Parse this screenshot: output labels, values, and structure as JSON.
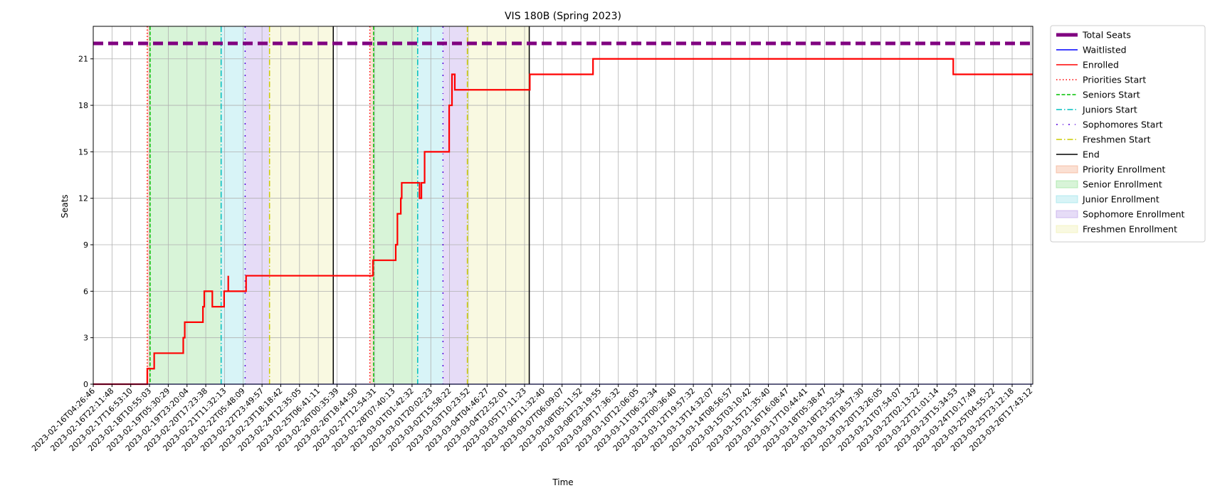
{
  "chart_data": {
    "type": "line",
    "title": "VIS 180B (Spring 2023)",
    "xlabel": "Time",
    "ylabel": "Seats",
    "ylim": [
      0,
      23.1
    ],
    "yticks": [
      0,
      3,
      6,
      9,
      12,
      15,
      18,
      21
    ],
    "grid": true,
    "legend_position": "outside-right",
    "x_ticks": [
      "2023-02-16T04:26:46",
      "2023-02-16T22:11:48",
      "2023-02-17T16:53:10",
      "2023-02-18T10:55:03",
      "2023-02-19T05:30:29",
      "2023-02-19T23:20:04",
      "2023-02-20T17:23:38",
      "2023-02-21T11:32:13",
      "2023-02-22T05:48:09",
      "2023-02-22T23:49:57",
      "2023-02-23T18:18:42",
      "2023-02-24T12:35:05",
      "2023-02-25T06:41:11",
      "2023-02-26T00:35:39",
      "2023-02-26T18:44:50",
      "2023-02-27T12:54:31",
      "2023-02-28T07:40:13",
      "2023-03-01T01:42:32",
      "2023-03-01T20:02:23",
      "2023-03-02T15:58:22",
      "2023-03-03T10:23:52",
      "2023-03-04T04:46:27",
      "2023-03-04T22:52:01",
      "2023-03-05T17:11:23",
      "2023-03-06T11:32:40",
      "2023-03-07T06:09:07",
      "2023-03-08T05:11:52",
      "2023-03-08T23:19:55",
      "2023-03-09T17:36:32",
      "2023-03-10T12:06:05",
      "2023-03-11T06:32:34",
      "2023-03-12T00:36:40",
      "2023-03-12T19:57:32",
      "2023-03-13T14:32:07",
      "2023-03-14T08:56:57",
      "2023-03-15T03:10:42",
      "2023-03-15T21:35:40",
      "2023-03-16T16:08:47",
      "2023-03-17T10:44:41",
      "2023-03-18T05:38:47",
      "2023-03-18T23:52:54",
      "2023-03-19T18:57:30",
      "2023-03-20T13:26:05",
      "2023-03-21T07:54:07",
      "2023-03-22T02:13:22",
      "2023-03-22T21:01:14",
      "2023-03-23T15:34:53",
      "2023-03-24T10:17:49",
      "2023-03-25T04:55:22",
      "2023-03-25T23:12:18",
      "2023-03-26T17:43:12"
    ],
    "x_range": [
      0,
      50.1
    ],
    "total_seats": 22,
    "series": [
      {
        "name": "Enrolled",
        "color": "#ff0000",
        "points": [
          [
            0,
            0
          ],
          [
            2.88,
            0
          ],
          [
            2.88,
            1
          ],
          [
            3.25,
            1
          ],
          [
            3.25,
            2
          ],
          [
            4.8,
            2
          ],
          [
            4.8,
            3
          ],
          [
            4.88,
            3
          ],
          [
            4.88,
            4
          ],
          [
            5.85,
            4
          ],
          [
            5.85,
            5
          ],
          [
            5.92,
            5
          ],
          [
            5.92,
            6
          ],
          [
            6.35,
            6
          ],
          [
            6.35,
            5
          ],
          [
            6.98,
            5
          ],
          [
            6.98,
            6
          ],
          [
            7.2,
            6
          ],
          [
            7.2,
            7
          ],
          [
            7.2,
            6
          ],
          [
            8.15,
            6
          ],
          [
            8.15,
            7
          ],
          [
            12.95,
            7
          ],
          [
            14.92,
            7
          ],
          [
            14.92,
            8
          ],
          [
            16.13,
            8
          ],
          [
            16.13,
            9
          ],
          [
            16.22,
            9
          ],
          [
            16.22,
            11
          ],
          [
            16.4,
            11
          ],
          [
            16.4,
            12
          ],
          [
            16.45,
            12
          ],
          [
            16.45,
            13
          ],
          [
            17.4,
            13
          ],
          [
            17.4,
            12
          ],
          [
            17.5,
            12
          ],
          [
            17.5,
            13
          ],
          [
            17.67,
            13
          ],
          [
            17.67,
            15
          ],
          [
            18.98,
            15
          ],
          [
            18.98,
            18
          ],
          [
            19.13,
            18
          ],
          [
            19.13,
            20
          ],
          [
            19.28,
            20
          ],
          [
            19.28,
            19
          ],
          [
            23.28,
            19
          ],
          [
            23.28,
            20
          ],
          [
            26.65,
            20
          ],
          [
            26.65,
            21
          ],
          [
            45.86,
            21
          ],
          [
            45.86,
            20
          ],
          [
            50.1,
            20
          ]
        ]
      },
      {
        "name": "Waitlisted",
        "color": "#0000ff",
        "points": [
          [
            0,
            0
          ],
          [
            50.1,
            0
          ]
        ]
      }
    ],
    "event_lines": [
      {
        "name": "Priorities Start",
        "color": "#ff0000",
        "style": "dotted",
        "x": [
          2.88,
          14.75
        ]
      },
      {
        "name": "Seniors Start",
        "color": "#00c000",
        "style": "dashed",
        "x": [
          3.03,
          14.95
        ]
      },
      {
        "name": "Juniors Start",
        "color": "#00bfbf",
        "style": "dashdot",
        "x": [
          6.82,
          17.3
        ]
      },
      {
        "name": "Sophomores Start",
        "color": "#5500dd",
        "style": "loosedashdot",
        "x": [
          8.1,
          18.65
        ]
      },
      {
        "name": "Freshmen Start",
        "color": "#cccc00",
        "style": "dashdot",
        "x": [
          9.4,
          19.95
        ]
      },
      {
        "name": "End",
        "color": "#000000",
        "style": "solid",
        "x": [
          12.8,
          23.25
        ]
      }
    ],
    "shaded_regions": [
      {
        "name": "Priority Enrollment",
        "color": "#f4a582",
        "ranges": [
          [
            2.88,
            3.03
          ],
          [
            14.75,
            14.95
          ]
        ]
      },
      {
        "name": "Senior Enrollment",
        "color": "#8fe08f",
        "ranges": [
          [
            3.03,
            6.82
          ],
          [
            14.95,
            17.3
          ]
        ]
      },
      {
        "name": "Junior Enrollment",
        "color": "#8fe0e8",
        "ranges": [
          [
            6.82,
            8.1
          ],
          [
            17.3,
            18.65
          ]
        ]
      },
      {
        "name": "Sophomore Enrollment",
        "color": "#b89be8",
        "ranges": [
          [
            8.1,
            9.4
          ],
          [
            18.65,
            19.95
          ]
        ]
      },
      {
        "name": "Freshmen Enrollment",
        "color": "#eeeea8",
        "ranges": [
          [
            9.4,
            12.8
          ],
          [
            19.95,
            23.25
          ]
        ]
      }
    ],
    "legend": [
      {
        "label": "Total Seats",
        "kind": "thickdash",
        "color": "#800080"
      },
      {
        "label": "Waitlisted",
        "kind": "line",
        "color": "#0000ff"
      },
      {
        "label": "Enrolled",
        "kind": "line",
        "color": "#ff0000"
      },
      {
        "label": "Priorities Start",
        "kind": "dotted",
        "color": "#ff0000"
      },
      {
        "label": "Seniors Start",
        "kind": "dashed",
        "color": "#00c000"
      },
      {
        "label": "Juniors Start",
        "kind": "dashdot",
        "color": "#00bfbf"
      },
      {
        "label": "Sophomores Start",
        "kind": "loosedashdot",
        "color": "#5500dd"
      },
      {
        "label": "Freshmen Start",
        "kind": "dashdot",
        "color": "#cccc00"
      },
      {
        "label": "End",
        "kind": "line",
        "color": "#000000"
      },
      {
        "label": "Priority Enrollment",
        "kind": "patch",
        "color": "#f4a582"
      },
      {
        "label": "Senior Enrollment",
        "kind": "patch",
        "color": "#8fe08f"
      },
      {
        "label": "Junior Enrollment",
        "kind": "patch",
        "color": "#8fe0e8"
      },
      {
        "label": "Sophomore Enrollment",
        "kind": "patch",
        "color": "#b89be8"
      },
      {
        "label": "Freshmen Enrollment",
        "kind": "patch",
        "color": "#eeeea8"
      }
    ]
  }
}
